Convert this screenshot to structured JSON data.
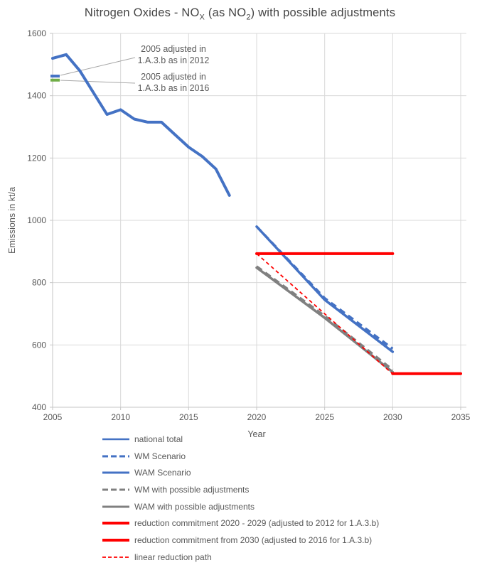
{
  "chart_data": {
    "type": "line",
    "title_plain": "Nitrogen Oxides - NOX (as NO2) with possible adjustments",
    "title_parts": {
      "p1": "Nitrogen Oxides - NO",
      "s1": "X",
      "p2": " (as NO",
      "s2": "2",
      "p3": ") with possible adjustments"
    },
    "xlabel": "Year",
    "ylabel": "Emissions in kt/a",
    "xlim": [
      2005,
      2035
    ],
    "ylim": [
      400,
      1600
    ],
    "x_ticks": [
      2005,
      2010,
      2015,
      2020,
      2025,
      2030,
      2035
    ],
    "y_ticks": [
      400,
      600,
      800,
      1000,
      1200,
      1400,
      1600
    ],
    "grid": true,
    "legend_position": "bottom-left",
    "colors": {
      "blue": "#4472C4",
      "gray": "#808080",
      "red": "#FF0000",
      "green": "#70AD47",
      "grid": "#D9D9D9",
      "axis": "#C6C6C6",
      "text": "#595959",
      "leader": "#A6A6A6"
    },
    "series": [
      {
        "id": "national-total",
        "name": "national total",
        "color": "#4472C4",
        "width": 4,
        "dash": null,
        "points": [
          [
            2005,
            1520
          ],
          [
            2006,
            1532
          ],
          [
            2007,
            1480
          ],
          [
            2008,
            1410
          ],
          [
            2009,
            1340
          ],
          [
            2010,
            1355
          ],
          [
            2011,
            1325
          ],
          [
            2012,
            1315
          ],
          [
            2013,
            1315
          ],
          [
            2014,
            1275
          ],
          [
            2015,
            1235
          ],
          [
            2016,
            1205
          ],
          [
            2017,
            1165
          ],
          [
            2018,
            1080
          ]
        ]
      },
      {
        "id": "wm-scenario",
        "name": "WM Scenario",
        "color": "#4472C4",
        "width": 3.5,
        "dash": "9,6",
        "points": [
          [
            2020,
            980
          ],
          [
            2025,
            750
          ],
          [
            2030,
            588
          ]
        ]
      },
      {
        "id": "wam-scenario",
        "name": "WAM Scenario",
        "color": "#4472C4",
        "width": 3.5,
        "dash": null,
        "points": [
          [
            2020,
            980
          ],
          [
            2025,
            745
          ],
          [
            2030,
            578
          ]
        ]
      },
      {
        "id": "wm-with-possible-adjustments",
        "name": "WM with possible adjustments",
        "color": "#808080",
        "width": 3.5,
        "dash": "9,6",
        "points": [
          [
            2020,
            852
          ],
          [
            2025,
            693
          ],
          [
            2030,
            520
          ]
        ]
      },
      {
        "id": "wam-with-possible-adjustments",
        "name": "WAM with possible adjustments",
        "color": "#808080",
        "width": 3.5,
        "dash": null,
        "points": [
          [
            2020,
            848
          ],
          [
            2025,
            687
          ],
          [
            2030,
            513
          ]
        ]
      },
      {
        "id": "reduction-commitment-2020-2029",
        "name": "reduction commitment 2020 - 2029 (adjusted to 2012 for 1.A.3.b)",
        "color": "#FF0000",
        "width": 4,
        "dash": null,
        "points": [
          [
            2020,
            893
          ],
          [
            2030,
            893
          ]
        ]
      },
      {
        "id": "reduction-commitment-from-2030",
        "name": "reduction commitment from 2030 (adjusted to 2016 for 1.A.3.b)",
        "color": "#FF0000",
        "width": 4,
        "dash": null,
        "points": [
          [
            2030,
            508
          ],
          [
            2035,
            508
          ]
        ]
      },
      {
        "id": "linear-reduction-path",
        "name": "linear reduction path",
        "color": "#FF0000",
        "width": 1.8,
        "dash": "5,4",
        "points": [
          [
            2020,
            893
          ],
          [
            2030,
            507
          ]
        ]
      }
    ],
    "markers_2005_adjusted": [
      {
        "id": "adjusted-2012",
        "value": 1463,
        "color": "#4472C4",
        "label_line1": "2005 adjusted in",
        "label_line2": "1.A.3.b as in 2012"
      },
      {
        "id": "adjusted-2016",
        "value": 1450,
        "color": "#70AD47",
        "label_line1": "2005 adjusted in",
        "label_line2": "1.A.3.b as in 2016"
      }
    ]
  },
  "legend": {
    "items": [
      {
        "label": "national total",
        "color": "#4472C4",
        "width": 2.6,
        "dash": null
      },
      {
        "label": "WM Scenario",
        "color": "#4472C4",
        "width": 3,
        "dash": "8,4"
      },
      {
        "label": "WAM Scenario",
        "color": "#4472C4",
        "width": 3,
        "dash": null
      },
      {
        "label": "WM with possible adjustments",
        "color": "#808080",
        "width": 3,
        "dash": "8,4"
      },
      {
        "label": "WAM with possible adjustments",
        "color": "#808080",
        "width": 3,
        "dash": null
      },
      {
        "label": "reduction commitment 2020 - 2029 (adjusted to 2012 for 1.A.3.b)",
        "color": "#FF0000",
        "width": 4,
        "dash": null
      },
      {
        "label": "reduction commitment from 2030 (adjusted to 2016 for 1.A.3.b)",
        "color": "#FF0000",
        "width": 4,
        "dash": null
      },
      {
        "label": "linear reduction path",
        "color": "#FF0000",
        "width": 1.8,
        "dash": "5,3"
      }
    ]
  }
}
